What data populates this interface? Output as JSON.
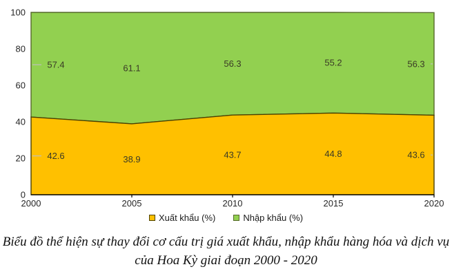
{
  "chart_data": {
    "type": "area",
    "stacked": true,
    "title": "",
    "categories": [
      "2000",
      "2005",
      "2010",
      "2015",
      "2020"
    ],
    "series": [
      {
        "name": "Xuất khẩu (%)",
        "values": [
          42.6,
          38.9,
          43.7,
          44.8,
          43.6
        ],
        "fill": "#FFC000",
        "stroke": "#4a4000"
      },
      {
        "name": "Nhập khẩu (%)",
        "values": [
          57.4,
          61.1,
          56.3,
          55.2,
          56.3
        ],
        "fill": "#92D050",
        "stroke": "#55682b"
      }
    ],
    "ylim": [
      0,
      100
    ],
    "yticks": [
      0,
      20,
      40,
      60,
      80,
      100
    ],
    "grid": false,
    "legend_position": "bottom",
    "data_labels": true,
    "leader_line_color": "#BFBFBF",
    "axis_color": "#000000"
  },
  "caption": {
    "line1": "Biểu đồ thể hiện sự thay đổi cơ cấu trị giá xuất khẩu, nhập khẩu hàng hóa và dịch vụ",
    "line2": "của Hoa Kỳ giai đoạn 2000 - 2020"
  }
}
